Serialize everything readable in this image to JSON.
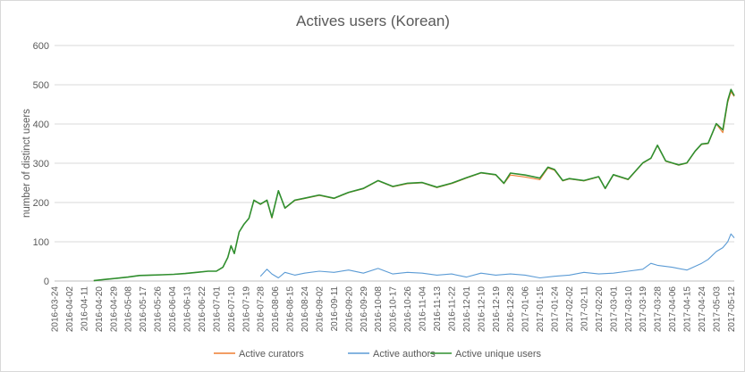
{
  "chart_data": {
    "type": "line",
    "title": "Actives users (Korean)",
    "xlabel": "",
    "ylabel": "number of distinct users",
    "ylim": [
      0,
      600
    ],
    "yticks": [
      0,
      100,
      200,
      300,
      400,
      500,
      600
    ],
    "grid": true,
    "legend_position": "bottom",
    "x_start": "2016-03-24",
    "x_end": "2017-05-14",
    "x_tick_labels": [
      "2016-03-24",
      "2016-04-02",
      "2016-04-11",
      "2016-04-20",
      "2016-04-29",
      "2016-05-08",
      "2016-05-17",
      "2016-05-26",
      "2016-06-04",
      "2016-06-13",
      "2016-06-22",
      "2016-07-01",
      "2016-07-10",
      "2016-07-19",
      "2016-07-28",
      "2016-08-06",
      "2016-08-15",
      "2016-08-24",
      "2016-09-02",
      "2016-09-11",
      "2016-09-20",
      "2016-09-29",
      "2016-10-08",
      "2016-10-17",
      "2016-10-26",
      "2016-11-04",
      "2016-11-13",
      "2016-11-22",
      "2016-12-01",
      "2016-12-10",
      "2016-12-19",
      "2016-12-28",
      "2017-01-06",
      "2017-01-15",
      "2017-01-24",
      "2017-02-02",
      "2017-02-11",
      "2017-02-20",
      "2017-03-01",
      "2017-03-10",
      "2017-03-19",
      "2017-03-28",
      "2017-04-06",
      "2017-04-15",
      "2017-04-24",
      "2017-05-03",
      "2017-05-12"
    ],
    "series": [
      {
        "name": "Active curators",
        "color": "#ed7d31",
        "points": [
          [
            "2016-04-17",
            1
          ],
          [
            "2016-04-24",
            4
          ],
          [
            "2016-05-01",
            7
          ],
          [
            "2016-05-08",
            10
          ],
          [
            "2016-05-15",
            14
          ],
          [
            "2016-05-22",
            15
          ],
          [
            "2016-05-29",
            16
          ],
          [
            "2016-06-05",
            17
          ],
          [
            "2016-06-12",
            19
          ],
          [
            "2016-06-19",
            22
          ],
          [
            "2016-06-26",
            25
          ],
          [
            "2016-07-01",
            25
          ],
          [
            "2016-07-05",
            35
          ],
          [
            "2016-07-08",
            60
          ],
          [
            "2016-07-10",
            90
          ],
          [
            "2016-07-12",
            70
          ],
          [
            "2016-07-15",
            125
          ],
          [
            "2016-07-18",
            145
          ],
          [
            "2016-07-21",
            160
          ],
          [
            "2016-07-24",
            205
          ],
          [
            "2016-07-28",
            195
          ],
          [
            "2016-08-01",
            205
          ],
          [
            "2016-08-04",
            160
          ],
          [
            "2016-08-08",
            230
          ],
          [
            "2016-08-12",
            185
          ],
          [
            "2016-08-18",
            205
          ],
          [
            "2016-08-24",
            210
          ],
          [
            "2016-09-02",
            218
          ],
          [
            "2016-09-11",
            210
          ],
          [
            "2016-09-20",
            225
          ],
          [
            "2016-09-29",
            235
          ],
          [
            "2016-10-08",
            255
          ],
          [
            "2016-10-17",
            240
          ],
          [
            "2016-10-26",
            248
          ],
          [
            "2016-11-04",
            250
          ],
          [
            "2016-11-13",
            238
          ],
          [
            "2016-11-22",
            248
          ],
          [
            "2016-12-01",
            262
          ],
          [
            "2016-12-10",
            275
          ],
          [
            "2016-12-19",
            270
          ],
          [
            "2016-12-24",
            248
          ],
          [
            "2016-12-28",
            270
          ],
          [
            "2017-01-06",
            265
          ],
          [
            "2017-01-15",
            258
          ],
          [
            "2017-01-20",
            288
          ],
          [
            "2017-01-24",
            282
          ],
          [
            "2017-01-29",
            255
          ],
          [
            "2017-02-02",
            260
          ],
          [
            "2017-02-11",
            255
          ],
          [
            "2017-02-20",
            265
          ],
          [
            "2017-02-24",
            235
          ],
          [
            "2017-03-01",
            270
          ],
          [
            "2017-03-10",
            258
          ],
          [
            "2017-03-19",
            300
          ],
          [
            "2017-03-24",
            312
          ],
          [
            "2017-03-28",
            345
          ],
          [
            "2017-04-02",
            305
          ],
          [
            "2017-04-06",
            300
          ],
          [
            "2017-04-10",
            295
          ],
          [
            "2017-04-15",
            300
          ],
          [
            "2017-04-20",
            330
          ],
          [
            "2017-04-24",
            348
          ],
          [
            "2017-04-28",
            350
          ],
          [
            "2017-05-03",
            400
          ],
          [
            "2017-05-07",
            378
          ],
          [
            "2017-05-10",
            455
          ],
          [
            "2017-05-12",
            482
          ],
          [
            "2017-05-14",
            470
          ]
        ]
      },
      {
        "name": "Active authors",
        "color": "#5b9bd5",
        "points": [
          [
            "2016-07-28",
            12
          ],
          [
            "2016-08-01",
            30
          ],
          [
            "2016-08-04",
            18
          ],
          [
            "2016-08-08",
            8
          ],
          [
            "2016-08-12",
            22
          ],
          [
            "2016-08-18",
            15
          ],
          [
            "2016-08-24",
            20
          ],
          [
            "2016-09-02",
            25
          ],
          [
            "2016-09-11",
            22
          ],
          [
            "2016-09-20",
            28
          ],
          [
            "2016-09-29",
            20
          ],
          [
            "2016-10-08",
            32
          ],
          [
            "2016-10-17",
            18
          ],
          [
            "2016-10-26",
            22
          ],
          [
            "2016-11-04",
            20
          ],
          [
            "2016-11-13",
            15
          ],
          [
            "2016-11-22",
            18
          ],
          [
            "2016-12-01",
            10
          ],
          [
            "2016-12-10",
            20
          ],
          [
            "2016-12-19",
            15
          ],
          [
            "2016-12-28",
            18
          ],
          [
            "2017-01-06",
            15
          ],
          [
            "2017-01-15",
            8
          ],
          [
            "2017-01-24",
            12
          ],
          [
            "2017-02-02",
            15
          ],
          [
            "2017-02-11",
            22
          ],
          [
            "2017-02-20",
            18
          ],
          [
            "2017-03-01",
            20
          ],
          [
            "2017-03-10",
            25
          ],
          [
            "2017-03-19",
            30
          ],
          [
            "2017-03-24",
            45
          ],
          [
            "2017-03-28",
            40
          ],
          [
            "2017-04-06",
            35
          ],
          [
            "2017-04-15",
            28
          ],
          [
            "2017-04-24",
            45
          ],
          [
            "2017-04-28",
            55
          ],
          [
            "2017-05-03",
            75
          ],
          [
            "2017-05-07",
            85
          ],
          [
            "2017-05-10",
            100
          ],
          [
            "2017-05-12",
            120
          ],
          [
            "2017-05-14",
            110
          ]
        ]
      },
      {
        "name": "Active unique users",
        "color": "#2f8f2f",
        "points": [
          [
            "2016-04-17",
            1
          ],
          [
            "2016-04-24",
            4
          ],
          [
            "2016-05-01",
            7
          ],
          [
            "2016-05-08",
            10
          ],
          [
            "2016-05-15",
            14
          ],
          [
            "2016-05-22",
            15
          ],
          [
            "2016-05-29",
            16
          ],
          [
            "2016-06-05",
            17
          ],
          [
            "2016-06-12",
            19
          ],
          [
            "2016-06-19",
            22
          ],
          [
            "2016-06-26",
            25
          ],
          [
            "2016-07-01",
            25
          ],
          [
            "2016-07-05",
            35
          ],
          [
            "2016-07-08",
            60
          ],
          [
            "2016-07-10",
            90
          ],
          [
            "2016-07-12",
            70
          ],
          [
            "2016-07-15",
            125
          ],
          [
            "2016-07-18",
            145
          ],
          [
            "2016-07-21",
            160
          ],
          [
            "2016-07-24",
            206
          ],
          [
            "2016-07-28",
            196
          ],
          [
            "2016-08-01",
            206
          ],
          [
            "2016-08-04",
            162
          ],
          [
            "2016-08-08",
            230
          ],
          [
            "2016-08-12",
            186
          ],
          [
            "2016-08-18",
            206
          ],
          [
            "2016-08-24",
            211
          ],
          [
            "2016-09-02",
            219
          ],
          [
            "2016-09-11",
            211
          ],
          [
            "2016-09-20",
            226
          ],
          [
            "2016-09-29",
            236
          ],
          [
            "2016-10-08",
            256
          ],
          [
            "2016-10-17",
            241
          ],
          [
            "2016-10-26",
            249
          ],
          [
            "2016-11-04",
            251
          ],
          [
            "2016-11-13",
            239
          ],
          [
            "2016-11-22",
            249
          ],
          [
            "2016-12-01",
            263
          ],
          [
            "2016-12-10",
            276
          ],
          [
            "2016-12-19",
            271
          ],
          [
            "2016-12-24",
            249
          ],
          [
            "2016-12-28",
            275
          ],
          [
            "2017-01-06",
            270
          ],
          [
            "2017-01-15",
            262
          ],
          [
            "2017-01-20",
            290
          ],
          [
            "2017-01-24",
            284
          ],
          [
            "2017-01-29",
            256
          ],
          [
            "2017-02-02",
            261
          ],
          [
            "2017-02-11",
            256
          ],
          [
            "2017-02-20",
            266
          ],
          [
            "2017-02-24",
            236
          ],
          [
            "2017-03-01",
            271
          ],
          [
            "2017-03-10",
            259
          ],
          [
            "2017-03-19",
            301
          ],
          [
            "2017-03-24",
            313
          ],
          [
            "2017-03-28",
            346
          ],
          [
            "2017-04-02",
            306
          ],
          [
            "2017-04-06",
            301
          ],
          [
            "2017-04-10",
            296
          ],
          [
            "2017-04-15",
            301
          ],
          [
            "2017-04-20",
            331
          ],
          [
            "2017-04-24",
            349
          ],
          [
            "2017-04-28",
            351
          ],
          [
            "2017-05-03",
            401
          ],
          [
            "2017-05-07",
            385
          ],
          [
            "2017-05-10",
            460
          ],
          [
            "2017-05-12",
            488
          ],
          [
            "2017-05-14",
            472
          ]
        ]
      }
    ]
  }
}
